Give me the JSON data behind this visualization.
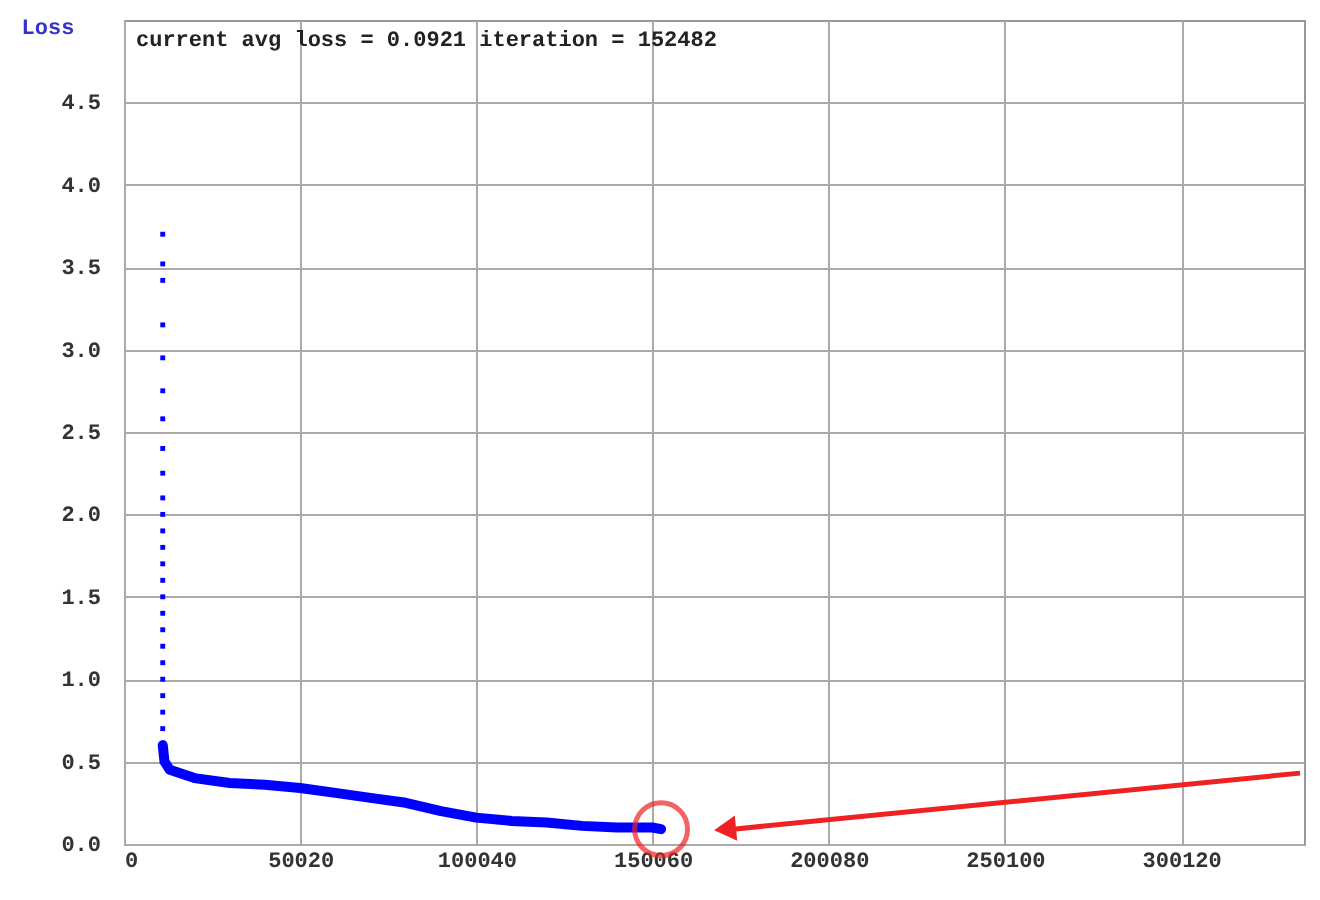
{
  "chart_data": {
    "type": "line",
    "ylabel": "Loss",
    "annotations": [
      "current avg loss = 0.0921    iteration = 152482"
    ],
    "xlim": [
      0,
      335000
    ],
    "xticks": [
      0,
      50020,
      100040,
      150060,
      200080,
      250100,
      300120
    ],
    "ylim": [
      0,
      5.0
    ],
    "yticks": [
      {
        "value": 0,
        "label": "0.0"
      },
      0.5,
      {
        "value": 1,
        "label": "1.0"
      },
      1.5,
      {
        "value": 2,
        "label": "2.0"
      },
      2.5,
      {
        "value": 3,
        "label": "3.0"
      },
      3.5,
      {
        "value": 4,
        "label": "4.0"
      },
      4.5
    ],
    "grid": true,
    "series": [
      {
        "type": "scatter",
        "marker": "square",
        "color": "#0000ff",
        "x": [
          11000,
          11000,
          11000,
          11000,
          11000,
          11000,
          11000,
          11000,
          11000,
          11000,
          11000,
          11000,
          11000,
          11000,
          11000,
          11000,
          11000,
          11000,
          11000,
          11000,
          11000,
          11000,
          11000,
          11000
        ],
        "values": [
          3.7,
          3.52,
          3.42,
          3.15,
          2.95,
          2.75,
          2.58,
          2.4,
          2.25,
          2.1,
          2.0,
          1.9,
          1.8,
          1.7,
          1.6,
          1.5,
          1.4,
          1.3,
          1.2,
          1.1,
          1.0,
          0.9,
          0.8,
          0.7
        ]
      },
      {
        "line_style": "solid",
        "color": "#0000ff",
        "x": [
          11000,
          11500,
          13000,
          20000,
          30000,
          40000,
          50000,
          60000,
          70000,
          80000,
          90000,
          100000,
          110000,
          120000,
          130000,
          140000,
          150000,
          152482
        ],
        "values": [
          0.6,
          0.5,
          0.45,
          0.4,
          0.37,
          0.36,
          0.34,
          0.31,
          0.28,
          0.25,
          0.2,
          0.16,
          0.14,
          0.13,
          0.11,
          0.1,
          0.1,
          0.09
        ]
      }
    ]
  }
}
